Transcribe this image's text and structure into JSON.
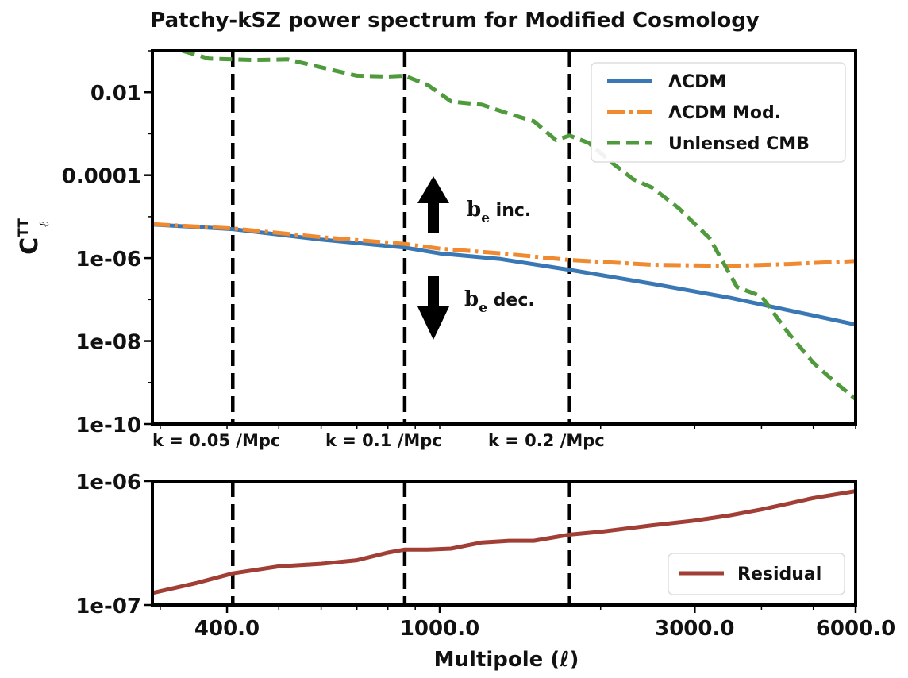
{
  "chart_data": [
    {
      "type": "line",
      "title": "Patchy-kSZ power spectrum for Modified  Cosmology",
      "xlabel": "",
      "ylabel": "C",
      "ylabel_sub": "ℓ",
      "ylabel_sup": "TT",
      "xscale": "log",
      "yscale": "log",
      "xlim": [
        290,
        6000
      ],
      "ylim": [
        1e-10,
        0.1
      ],
      "yticks": [
        {
          "value": 1e-10,
          "label": "1e-10"
        },
        {
          "value": 1e-08,
          "label": "1e-08"
        },
        {
          "value": 1e-06,
          "label": "1e-06"
        },
        {
          "value": 0.0001,
          "label": "0.0001"
        },
        {
          "value": 0.01,
          "label": "0.01"
        }
      ],
      "vlines": [
        {
          "x": 410,
          "label": "k = 0.05 /Mpc"
        },
        {
          "x": 860,
          "label": "k = 0.1 /Mpc"
        },
        {
          "x": 1750,
          "label": "k = 0.2 /Mpc"
        }
      ],
      "annotations": [
        {
          "base": "b",
          "sub": "e",
          "text": " inc.",
          "arrow": "up"
        },
        {
          "base": "b",
          "sub": "e",
          "text": " dec.",
          "arrow": "down"
        }
      ],
      "legend_position": "top-right",
      "series": [
        {
          "name": "ΛCDM",
          "color": "#3a78b5",
          "style": "solid",
          "x": [
            290,
            410,
            600,
            860,
            1000,
            1300,
            1750,
            2500,
            3500,
            4500,
            6000
          ],
          "y": [
            6.5e-06,
            5e-06,
            2.8e-06,
            1.8e-06,
            1.3e-06,
            9.5e-07,
            5.2e-07,
            2.4e-07,
            1.1e-07,
            5.5e-08,
            2.5e-08
          ]
        },
        {
          "name": "ΛCDM Mod.",
          "color": "#f08a30",
          "style": "dashdot",
          "x": [
            290,
            410,
            600,
            860,
            1000,
            1300,
            1750,
            2500,
            3500,
            4500,
            6000
          ],
          "y": [
            6.6e-06,
            5.2e-06,
            3.2e-06,
            2.2e-06,
            1.7e-06,
            1.3e-06,
            9e-07,
            6.9e-07,
            6.5e-07,
            7.2e-07,
            8.5e-07
          ]
        },
        {
          "name": "Unlensed CMB",
          "color": "#4e9a3c",
          "style": "dashed",
          "x": [
            330,
            370,
            450,
            520,
            600,
            700,
            800,
            860,
            950,
            1050,
            1200,
            1350,
            1500,
            1650,
            1750,
            1900,
            2100,
            2300,
            2500,
            2800,
            3200,
            3600,
            4000,
            4500,
            5000,
            5500,
            6000
          ],
          "y": [
            0.1,
            0.065,
            0.06,
            0.062,
            0.04,
            0.025,
            0.024,
            0.025,
            0.015,
            0.006,
            0.005,
            0.003,
            0.002,
            0.0007,
            0.0009,
            0.0006,
            0.0002,
            8e-05,
            5e-05,
            1.6e-05,
            3e-06,
            2e-07,
            1.2e-07,
            1.5e-08,
            3e-09,
            1e-09,
            4e-10
          ]
        }
      ]
    },
    {
      "type": "line",
      "title": "",
      "xlabel": "Multipole (ℓ)",
      "ylabel": "",
      "xscale": "log",
      "yscale": "log",
      "xlim": [
        290,
        6000
      ],
      "ylim": [
        1e-07,
        1e-06
      ],
      "yticks": [
        {
          "value": 1e-07,
          "label": "1e-07"
        },
        {
          "value": 1e-06,
          "label": "1e-06"
        }
      ],
      "xticks": [
        {
          "value": 400,
          "label": "400.0"
        },
        {
          "value": 1000,
          "label": "1000.0"
        },
        {
          "value": 3000,
          "label": "3000.0"
        },
        {
          "value": 6000,
          "label": "6000.0"
        }
      ],
      "vlines": [
        {
          "x": 410
        },
        {
          "x": 860
        },
        {
          "x": 1750
        }
      ],
      "legend_position": "bottom-right",
      "series": [
        {
          "name": "Residual",
          "color": "#a13e35",
          "style": "solid",
          "x": [
            290,
            350,
            410,
            500,
            600,
            700,
            800,
            860,
            950,
            1050,
            1200,
            1350,
            1500,
            1750,
            2000,
            2500,
            3000,
            3500,
            4000,
            4500,
            5000,
            6000
          ],
          "y": [
            1.25e-07,
            1.5e-07,
            1.8e-07,
            2.05e-07,
            2.15e-07,
            2.3e-07,
            2.65e-07,
            2.8e-07,
            2.8e-07,
            2.85e-07,
            3.2e-07,
            3.3e-07,
            3.3e-07,
            3.7e-07,
            3.9e-07,
            4.4e-07,
            4.8e-07,
            5.3e-07,
            5.9e-07,
            6.6e-07,
            7.3e-07,
            8.3e-07
          ]
        }
      ]
    }
  ]
}
